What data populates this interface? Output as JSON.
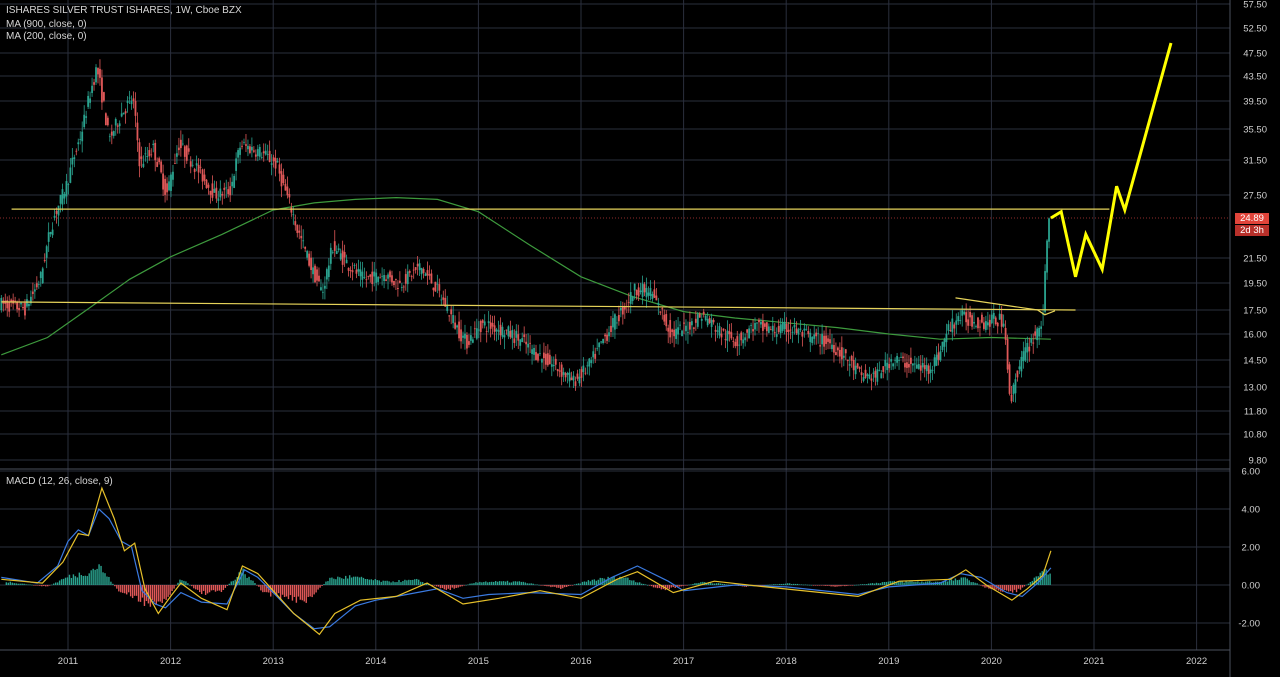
{
  "header": {
    "title": "ISHARES SILVER TRUST ISHARES, 1W, Cboe BZX",
    "indicators": [
      "MA (900, close, 0)",
      "MA (200, close, 0)"
    ],
    "macd_label": "MACD (12, 26, close, 9)"
  },
  "price_badge": {
    "price": "24.89",
    "countdown": "2d 3h"
  },
  "colors": {
    "background": "#000000",
    "grid": "#2a2f3d",
    "candle_up": "#2aa38f",
    "candle_down": "#e05858",
    "ma200": "#3d9a3d",
    "trendline": "#e6d35a",
    "projection": "#ffff00",
    "macd_line": "#3a7ae0",
    "signal_line": "#e6c02a",
    "price_badge": "#e0443a"
  },
  "chart_data": [
    {
      "type": "candlestick",
      "x_unit": "year",
      "xlim": [
        2010.35,
        2022.5
      ],
      "y_ticks": [
        57.5,
        52.5,
        47.5,
        43.5,
        39.5,
        35.5,
        31.5,
        27.5,
        24.89,
        21.5,
        19.5,
        17.5,
        16.0,
        14.5,
        13.0,
        11.8,
        10.8,
        9.8
      ],
      "y_tick_labels": [
        "57.50",
        "52.50",
        "47.50",
        "43.50",
        "39.50",
        "35.50",
        "31.50",
        "27.50",
        "24.89",
        "21.50",
        "19.50",
        "17.50",
        "16.00",
        "14.50",
        "13.00",
        "11.80",
        "10.80",
        "9.80"
      ],
      "x_ticks": [
        2011,
        2012,
        2013,
        2014,
        2015,
        2016,
        2017,
        2018,
        2019,
        2020,
        2021,
        2022
      ],
      "x_tick_labels": [
        "2011",
        "2012",
        "2013",
        "2014",
        "2015",
        "2016",
        "2017",
        "2018",
        "2019",
        "2020",
        "2021",
        "2022"
      ],
      "price_path": [
        [
          2010.35,
          18.0
        ],
        [
          2010.6,
          17.6
        ],
        [
          2010.75,
          19.8
        ],
        [
          2010.85,
          24.0
        ],
        [
          2011.0,
          28.5
        ],
        [
          2011.15,
          35.0
        ],
        [
          2011.3,
          45.0
        ],
        [
          2011.42,
          34.0
        ],
        [
          2011.55,
          38.0
        ],
        [
          2011.65,
          40.0
        ],
        [
          2011.72,
          31.0
        ],
        [
          2011.85,
          33.0
        ],
        [
          2011.98,
          27.5
        ],
        [
          2012.1,
          33.5
        ],
        [
          2012.25,
          31.0
        ],
        [
          2012.45,
          27.5
        ],
        [
          2012.6,
          28.0
        ],
        [
          2012.7,
          33.5
        ],
        [
          2012.9,
          32.5
        ],
        [
          2013.05,
          31.0
        ],
        [
          2013.25,
          24.0
        ],
        [
          2013.4,
          20.5
        ],
        [
          2013.5,
          18.8
        ],
        [
          2013.6,
          22.5
        ],
        [
          2013.75,
          21.0
        ],
        [
          2013.9,
          19.8
        ],
        [
          2014.1,
          20.2
        ],
        [
          2014.25,
          19.4
        ],
        [
          2014.45,
          20.8
        ],
        [
          2014.6,
          19.2
        ],
        [
          2014.8,
          16.5
        ],
        [
          2014.9,
          15.5
        ],
        [
          2015.05,
          16.6
        ],
        [
          2015.2,
          16.4
        ],
        [
          2015.4,
          15.8
        ],
        [
          2015.6,
          14.8
        ],
        [
          2015.8,
          14.0
        ],
        [
          2015.95,
          13.3
        ],
        [
          2016.1,
          14.2
        ],
        [
          2016.25,
          15.8
        ],
        [
          2016.45,
          17.8
        ],
        [
          2016.55,
          19.1
        ],
        [
          2016.7,
          18.8
        ],
        [
          2016.9,
          16.0
        ],
        [
          2017.05,
          16.4
        ],
        [
          2017.2,
          17.2
        ],
        [
          2017.4,
          16.0
        ],
        [
          2017.55,
          15.6
        ],
        [
          2017.7,
          16.5
        ],
        [
          2017.9,
          16.2
        ],
        [
          2018.05,
          16.4
        ],
        [
          2018.25,
          15.8
        ],
        [
          2018.45,
          15.5
        ],
        [
          2018.6,
          14.6
        ],
        [
          2018.75,
          13.6
        ],
        [
          2018.9,
          13.6
        ],
        [
          2019.05,
          14.6
        ],
        [
          2019.2,
          14.3
        ],
        [
          2019.4,
          14.0
        ],
        [
          2019.5,
          14.7
        ],
        [
          2019.6,
          16.3
        ],
        [
          2019.7,
          17.1
        ],
        [
          2019.8,
          16.9
        ],
        [
          2019.95,
          16.7
        ],
        [
          2020.05,
          16.9
        ],
        [
          2020.15,
          16.8
        ],
        [
          2020.2,
          12.0
        ],
        [
          2020.25,
          13.5
        ],
        [
          2020.35,
          15.0
        ],
        [
          2020.45,
          16.0
        ],
        [
          2020.52,
          17.0
        ],
        [
          2020.55,
          21.0
        ],
        [
          2020.58,
          24.89
        ]
      ],
      "series": [
        {
          "name": "MA (200, close, 0)",
          "values": [
            [
              2010.35,
              14.8
            ],
            [
              2010.8,
              15.8
            ],
            [
              2011.2,
              17.6
            ],
            [
              2011.6,
              19.8
            ],
            [
              2012.0,
              21.6
            ],
            [
              2012.5,
              23.5
            ],
            [
              2013.0,
              25.8
            ],
            [
              2013.4,
              26.6
            ],
            [
              2013.8,
              27.0
            ],
            [
              2014.2,
              27.2
            ],
            [
              2014.6,
              27.0
            ],
            [
              2015.0,
              25.6
            ],
            [
              2015.5,
              22.6
            ],
            [
              2016.0,
              20.0
            ],
            [
              2016.5,
              18.5
            ],
            [
              2017.0,
              17.4
            ],
            [
              2017.5,
              17.0
            ],
            [
              2018.0,
              16.7
            ],
            [
              2018.5,
              16.4
            ],
            [
              2019.0,
              16.0
            ],
            [
              2019.5,
              15.7
            ],
            [
              2020.0,
              15.8
            ],
            [
              2020.58,
              15.7
            ]
          ]
        }
      ],
      "annotations": {
        "resistance_lines": [
          {
            "x0": 2010.45,
            "y0": 25.9,
            "x1": 2021.15,
            "y1": 25.9
          },
          {
            "x0": 2010.35,
            "y0": 18.1,
            "x1": 2020.82,
            "y1": 17.5
          }
        ],
        "pennant": [
          [
            2019.65,
            18.4
          ],
          [
            2020.45,
            17.5
          ],
          [
            2020.52,
            17.2
          ],
          [
            2020.62,
            17.45
          ]
        ],
        "projection": [
          [
            2020.58,
            24.89
          ],
          [
            2020.68,
            25.6
          ],
          [
            2020.82,
            20.0
          ],
          [
            2020.92,
            23.5
          ],
          [
            2021.08,
            20.6
          ],
          [
            2021.22,
            28.5
          ],
          [
            2021.3,
            25.8
          ],
          [
            2021.75,
            49.5
          ]
        ]
      }
    },
    {
      "type": "macd",
      "label": "MACD (12, 26, close, 9)",
      "y_ticks": [
        6.0,
        4.0,
        2.0,
        0.0,
        -2.0
      ],
      "y_tick_labels": [
        "6.00",
        "4.00",
        "2.00",
        "0.00",
        "-2.00"
      ],
      "macd_line": [
        [
          2010.35,
          0.4
        ],
        [
          2010.7,
          0.1
        ],
        [
          2010.9,
          1.0
        ],
        [
          2011.0,
          2.3
        ],
        [
          2011.1,
          2.9
        ],
        [
          2011.2,
          2.6
        ],
        [
          2011.3,
          4.0
        ],
        [
          2011.4,
          3.5
        ],
        [
          2011.52,
          2.3
        ],
        [
          2011.62,
          2.0
        ],
        [
          2011.72,
          -0.3
        ],
        [
          2011.85,
          -1.0
        ],
        [
          2011.95,
          -1.2
        ],
        [
          2012.1,
          -0.4
        ],
        [
          2012.3,
          -0.9
        ],
        [
          2012.55,
          -1.0
        ],
        [
          2012.72,
          0.8
        ],
        [
          2012.85,
          0.4
        ],
        [
          2013.0,
          -0.4
        ],
        [
          2013.2,
          -1.5
        ],
        [
          2013.4,
          -2.3
        ],
        [
          2013.55,
          -2.2
        ],
        [
          2013.8,
          -1.1
        ],
        [
          2014.0,
          -0.8
        ],
        [
          2014.3,
          -0.5
        ],
        [
          2014.6,
          -0.2
        ],
        [
          2014.85,
          -0.7
        ],
        [
          2015.1,
          -0.5
        ],
        [
          2015.5,
          -0.4
        ],
        [
          2016.0,
          -0.5
        ],
        [
          2016.3,
          0.4
        ],
        [
          2016.55,
          1.0
        ],
        [
          2016.85,
          0.2
        ],
        [
          2017.0,
          -0.3
        ],
        [
          2017.5,
          0.0
        ],
        [
          2018.0,
          -0.1
        ],
        [
          2018.7,
          -0.5
        ],
        [
          2019.0,
          -0.1
        ],
        [
          2019.5,
          0.1
        ],
        [
          2019.7,
          0.6
        ],
        [
          2019.9,
          0.4
        ],
        [
          2020.15,
          -0.4
        ],
        [
          2020.3,
          -0.6
        ],
        [
          2020.45,
          0.1
        ],
        [
          2020.58,
          0.9
        ]
      ],
      "signal_line": [
        [
          2010.35,
          0.3
        ],
        [
          2010.75,
          0.1
        ],
        [
          2010.95,
          1.2
        ],
        [
          2011.1,
          2.7
        ],
        [
          2011.2,
          2.6
        ],
        [
          2011.33,
          5.1
        ],
        [
          2011.45,
          3.5
        ],
        [
          2011.55,
          1.8
        ],
        [
          2011.65,
          2.2
        ],
        [
          2011.75,
          -0.2
        ],
        [
          2011.88,
          -1.5
        ],
        [
          2012.0,
          -0.6
        ],
        [
          2012.1,
          0.1
        ],
        [
          2012.3,
          -0.7
        ],
        [
          2012.55,
          -1.3
        ],
        [
          2012.7,
          1.0
        ],
        [
          2012.85,
          0.6
        ],
        [
          2013.0,
          -0.3
        ],
        [
          2013.2,
          -1.5
        ],
        [
          2013.45,
          -2.6
        ],
        [
          2013.6,
          -1.5
        ],
        [
          2013.85,
          -0.8
        ],
        [
          2014.2,
          -0.6
        ],
        [
          2014.5,
          0.1
        ],
        [
          2014.85,
          -1.0
        ],
        [
          2015.2,
          -0.7
        ],
        [
          2015.6,
          -0.3
        ],
        [
          2016.0,
          -0.7
        ],
        [
          2016.35,
          0.3
        ],
        [
          2016.55,
          0.7
        ],
        [
          2016.9,
          -0.4
        ],
        [
          2017.3,
          0.2
        ],
        [
          2017.8,
          -0.1
        ],
        [
          2018.7,
          -0.6
        ],
        [
          2019.1,
          0.2
        ],
        [
          2019.6,
          0.3
        ],
        [
          2019.75,
          0.8
        ],
        [
          2019.95,
          0.0
        ],
        [
          2020.2,
          -0.8
        ],
        [
          2020.35,
          -0.2
        ],
        [
          2020.5,
          0.5
        ],
        [
          2020.58,
          1.8
        ]
      ],
      "histogram": [
        [
          2010.4,
          0.2
        ],
        [
          2010.8,
          -0.1
        ],
        [
          2011.0,
          0.5
        ],
        [
          2011.2,
          0.8
        ],
        [
          2011.3,
          1.2
        ],
        [
          2011.5,
          -0.4
        ],
        [
          2011.7,
          -0.9
        ],
        [
          2011.9,
          -1.4
        ],
        [
          2012.1,
          0.4
        ],
        [
          2012.3,
          -0.5
        ],
        [
          2012.5,
          -0.4
        ],
        [
          2012.7,
          0.9
        ],
        [
          2012.9,
          -0.4
        ],
        [
          2013.1,
          -0.8
        ],
        [
          2013.35,
          -0.9
        ],
        [
          2013.55,
          0.4
        ],
        [
          2013.75,
          0.5
        ],
        [
          2014.1,
          0.2
        ],
        [
          2014.4,
          0.3
        ],
        [
          2014.7,
          -0.3
        ],
        [
          2015.0,
          0.2
        ],
        [
          2015.4,
          0.2
        ],
        [
          2015.8,
          -0.2
        ],
        [
          2016.1,
          0.3
        ],
        [
          2016.4,
          0.5
        ],
        [
          2016.8,
          -0.3
        ],
        [
          2017.2,
          0.2
        ],
        [
          2017.6,
          -0.1
        ],
        [
          2018.0,
          0.1
        ],
        [
          2018.5,
          -0.1
        ],
        [
          2019.0,
          0.2
        ],
        [
          2019.5,
          0.2
        ],
        [
          2019.75,
          0.4
        ],
        [
          2020.0,
          -0.3
        ],
        [
          2020.25,
          -0.4
        ],
        [
          2020.45,
          0.5
        ],
        [
          2020.58,
          1.0
        ]
      ]
    }
  ]
}
